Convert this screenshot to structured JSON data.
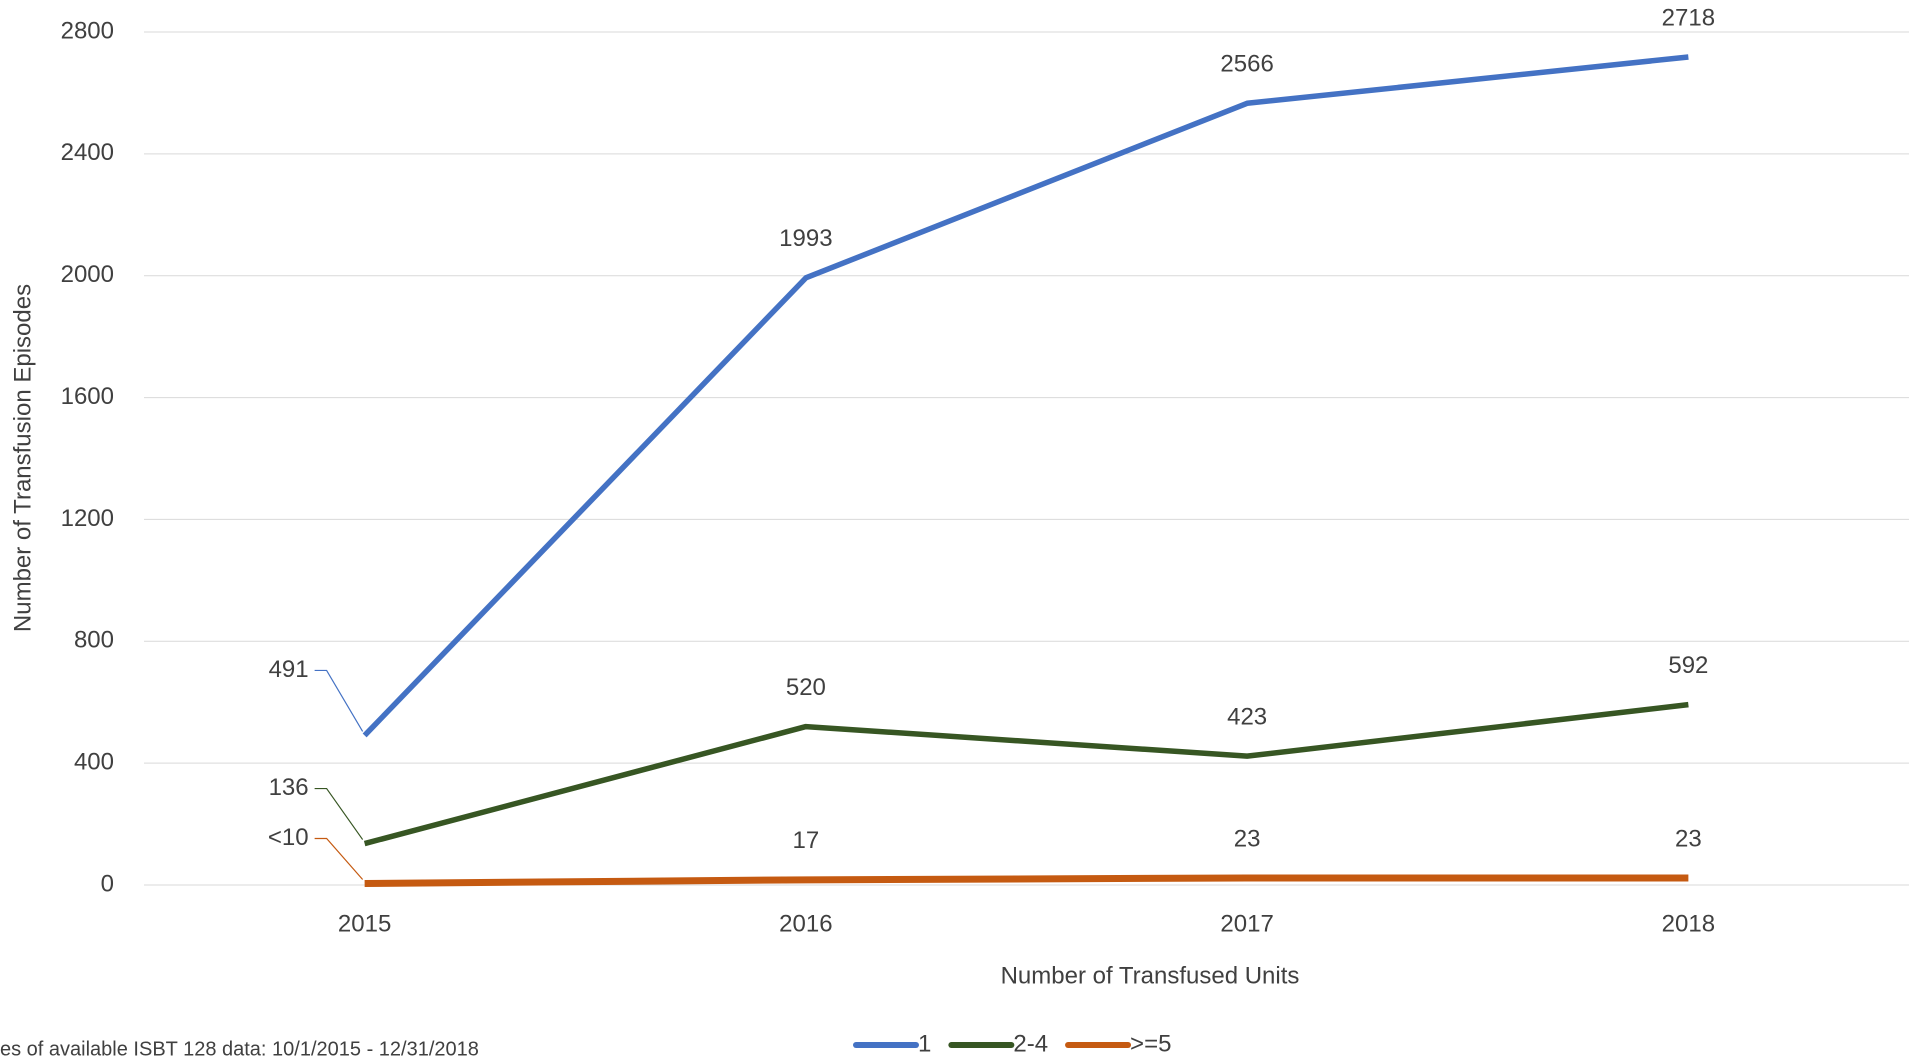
{
  "chart_data": {
    "type": "line",
    "x_label": "Number of Transfused Units",
    "y_label": "Number of Transfusion Episodes",
    "note": "es of available ISBT 128 data: 10/1/2015 - 12/31/2018",
    "categories": [
      "2015",
      "2016",
      "2017",
      "2018"
    ],
    "series": [
      {
        "name": "1",
        "color": "#4472c4",
        "values": [
          491,
          1993,
          2566,
          2718
        ]
      },
      {
        "name": "2-4",
        "color": "#375623",
        "values": [
          136,
          520,
          423,
          592
        ]
      },
      {
        "name": ">=5",
        "color": "#c55a11",
        "values": [
          5,
          17,
          23,
          23
        ],
        "value_labels": [
          "<10",
          "17",
          "23",
          "23"
        ]
      }
    ],
    "ylim": [
      0,
      2800
    ],
    "yticks": [
      0,
      400,
      800,
      1200,
      1600,
      2000,
      2400,
      2800
    ],
    "grid": true,
    "legend": "bottom"
  }
}
